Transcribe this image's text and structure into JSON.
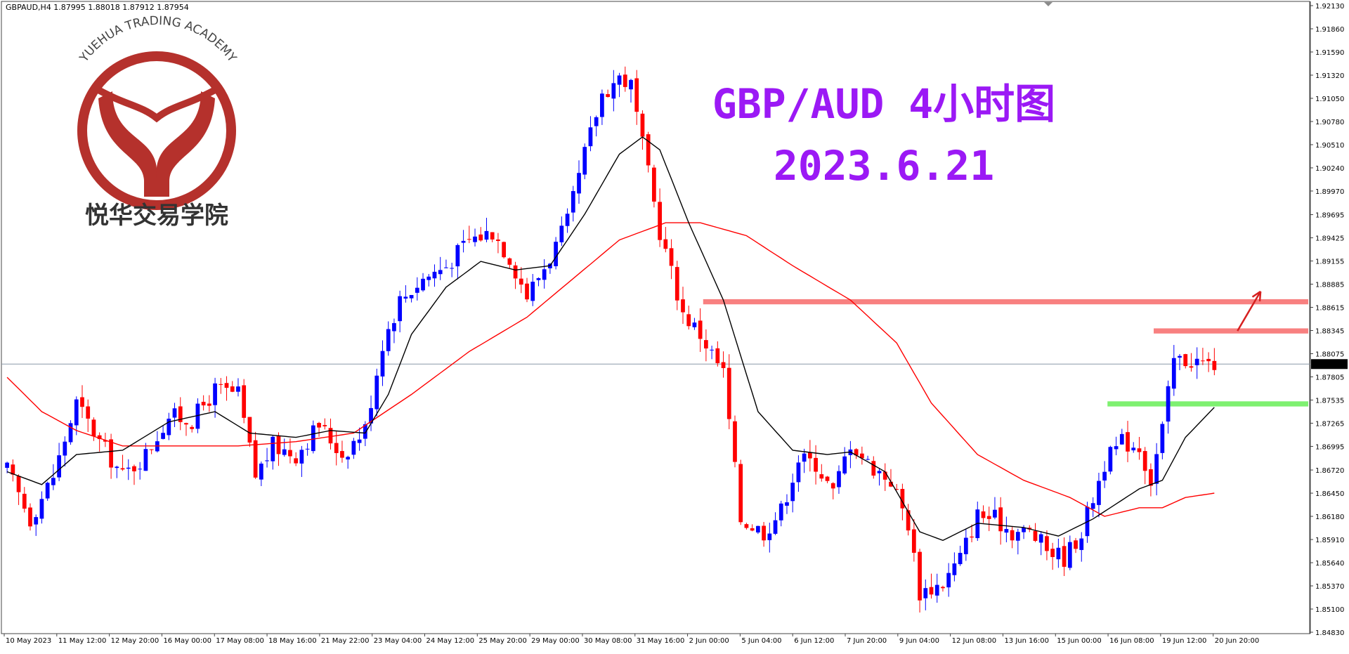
{
  "header": {
    "symbol_text": "GBPAUD,H4  1.87995 1.88018 1.87912 1.87954"
  },
  "title": {
    "line1": "GBP/AUD 4小时图",
    "line2": "2023.6.21",
    "color": "#9b19f5"
  },
  "logo": {
    "arc_text": "YUEHUA TRADING ACADEMY",
    "cn_text": "悦华交易学院",
    "color": "#b5312c"
  },
  "current_price_label": "1.87954",
  "colors": {
    "bull": "#0000ff",
    "bear": "#ff0000",
    "fast_ma": "#000000",
    "slow_ma": "#ff0000",
    "resistance": "#f88080",
    "support": "#7ef070",
    "arrow": "#d62020",
    "price_line": "#8a98a8"
  },
  "chart_data": {
    "type": "candlestick",
    "timeframe": "H4",
    "symbol": "GBPAUD",
    "ylim": [
      1.8483,
      1.9213
    ],
    "y_ticks": [
      "1.92130",
      "1.91860",
      "1.91590",
      "1.91320",
      "1.91050",
      "1.90780",
      "1.90510",
      "1.90240",
      "1.89970",
      "1.89695",
      "1.89425",
      "1.89155",
      "1.88885",
      "1.88615",
      "1.88345",
      "1.88075",
      "1.87805",
      "1.87535",
      "1.87265",
      "1.86995",
      "1.86720",
      "1.86450",
      "1.86180",
      "1.85910",
      "1.85640",
      "1.85370",
      "1.85100",
      "1.84830"
    ],
    "x_labels": [
      "10 May 2023",
      "11 May 12:00",
      "12 May 20:00",
      "16 May 00:00",
      "17 May 08:00",
      "18 May 16:00",
      "21 May 22:00",
      "23 May 04:00",
      "24 May 12:00",
      "25 May 20:00",
      "29 May 00:00",
      "30 May 08:00",
      "31 May 16:00",
      "2 Jun 00:00",
      "5 Jun 04:00",
      "6 Jun 12:00",
      "7 Jun 20:00",
      "9 Jun 04:00",
      "12 Jun 08:00",
      "13 Jun 16:00",
      "15 Jun 00:00",
      "16 Jun 08:00",
      "19 Jun 12:00",
      "20 Jun 20:00"
    ],
    "close_anchors": [
      [
        0,
        1.8672
      ],
      [
        4,
        1.8615
      ],
      [
        8,
        1.8665
      ],
      [
        12,
        1.875
      ],
      [
        16,
        1.8705
      ],
      [
        20,
        1.8665
      ],
      [
        24,
        1.869
      ],
      [
        28,
        1.8735
      ],
      [
        32,
        1.873
      ],
      [
        36,
        1.8765
      ],
      [
        40,
        1.876
      ],
      [
        43,
        1.8665
      ],
      [
        46,
        1.87
      ],
      [
        50,
        1.869
      ],
      [
        54,
        1.8725
      ],
      [
        58,
        1.869
      ],
      [
        62,
        1.872
      ],
      [
        65,
        1.882
      ],
      [
        68,
        1.887
      ],
      [
        72,
        1.8895
      ],
      [
        76,
        1.891
      ],
      [
        80,
        1.894
      ],
      [
        84,
        1.895
      ],
      [
        87,
        1.892
      ],
      [
        90,
        1.8875
      ],
      [
        94,
        1.892
      ],
      [
        97,
        1.896
      ],
      [
        100,
        1.904
      ],
      [
        103,
        1.911
      ],
      [
        106,
        1.913
      ],
      [
        108,
        1.912
      ],
      [
        110,
        1.905
      ],
      [
        113,
        1.895
      ],
      [
        117,
        1.8855
      ],
      [
        120,
        1.883
      ],
      [
        124,
        1.8785
      ],
      [
        127,
        1.8615
      ],
      [
        131,
        1.86
      ],
      [
        134,
        1.8625
      ],
      [
        137,
        1.8685
      ],
      [
        140,
        1.868
      ],
      [
        143,
        1.8645
      ],
      [
        146,
        1.8705
      ],
      [
        149,
        1.868
      ],
      [
        153,
        1.866
      ],
      [
        156,
        1.861
      ],
      [
        158,
        1.853
      ],
      [
        162,
        1.854
      ],
      [
        165,
        1.857
      ],
      [
        168,
        1.862
      ],
      [
        171,
        1.8615
      ],
      [
        174,
        1.86
      ],
      [
        177,
        1.86
      ],
      [
        180,
        1.858
      ],
      [
        183,
        1.857
      ],
      [
        186,
        1.86
      ],
      [
        190,
        1.868
      ],
      [
        193,
        1.8705
      ],
      [
        196,
        1.87
      ],
      [
        198,
        1.866
      ],
      [
        200,
        1.872
      ],
      [
        202,
        1.88
      ],
      [
        205,
        1.88
      ],
      [
        208,
        1.8795
      ]
    ],
    "fast_ma_anchors": [
      [
        0,
        1.867
      ],
      [
        6,
        1.8655
      ],
      [
        12,
        1.869
      ],
      [
        20,
        1.8695
      ],
      [
        28,
        1.8728
      ],
      [
        36,
        1.874
      ],
      [
        42,
        1.8715
      ],
      [
        50,
        1.871
      ],
      [
        56,
        1.8718
      ],
      [
        62,
        1.8715
      ],
      [
        66,
        1.876
      ],
      [
        70,
        1.883
      ],
      [
        76,
        1.8885
      ],
      [
        82,
        1.8915
      ],
      [
        88,
        1.8905
      ],
      [
        94,
        1.891
      ],
      [
        100,
        1.897
      ],
      [
        106,
        1.904
      ],
      [
        110,
        1.906
      ],
      [
        113,
        1.9045
      ],
      [
        118,
        1.896
      ],
      [
        124,
        1.887
      ],
      [
        130,
        1.874
      ],
      [
        136,
        1.8695
      ],
      [
        142,
        1.869
      ],
      [
        146,
        1.8693
      ],
      [
        152,
        1.867
      ],
      [
        158,
        1.86
      ],
      [
        162,
        1.859
      ],
      [
        168,
        1.861
      ],
      [
        176,
        1.8605
      ],
      [
        182,
        1.8595
      ],
      [
        188,
        1.8615
      ],
      [
        196,
        1.865
      ],
      [
        200,
        1.866
      ],
      [
        204,
        1.871
      ],
      [
        209,
        1.8745
      ]
    ],
    "slow_ma_anchors": [
      [
        0,
        1.878
      ],
      [
        6,
        1.874
      ],
      [
        12,
        1.8718
      ],
      [
        20,
        1.87
      ],
      [
        30,
        1.87
      ],
      [
        40,
        1.87
      ],
      [
        50,
        1.8705
      ],
      [
        60,
        1.8715
      ],
      [
        70,
        1.876
      ],
      [
        80,
        1.881
      ],
      [
        90,
        1.885
      ],
      [
        98,
        1.8895
      ],
      [
        106,
        1.894
      ],
      [
        114,
        1.896
      ],
      [
        120,
        1.896
      ],
      [
        128,
        1.8945
      ],
      [
        136,
        1.891
      ],
      [
        146,
        1.887
      ],
      [
        154,
        1.882
      ],
      [
        160,
        1.875
      ],
      [
        168,
        1.869
      ],
      [
        176,
        1.866
      ],
      [
        184,
        1.864
      ],
      [
        190,
        1.8618
      ],
      [
        196,
        1.8628
      ],
      [
        200,
        1.8628
      ],
      [
        204,
        1.864
      ],
      [
        209,
        1.8645
      ]
    ],
    "current_price": 1.87954,
    "zones": [
      {
        "kind": "resistance",
        "price_top": 1.8871,
        "price_bottom": 1.8865,
        "from_bar": 121,
        "to_bar": null
      },
      {
        "kind": "resistance",
        "price_top": 1.8837,
        "price_bottom": 1.8831,
        "from_bar": 199,
        "to_bar": null
      },
      {
        "kind": "support",
        "price_top": 1.8752,
        "price_bottom": 1.8746,
        "from_bar": 191,
        "to_bar": null
      }
    ],
    "arrow": {
      "from_bar": 213,
      "from_price": 1.8834,
      "to_bar": 217,
      "to_price": 1.888
    }
  }
}
